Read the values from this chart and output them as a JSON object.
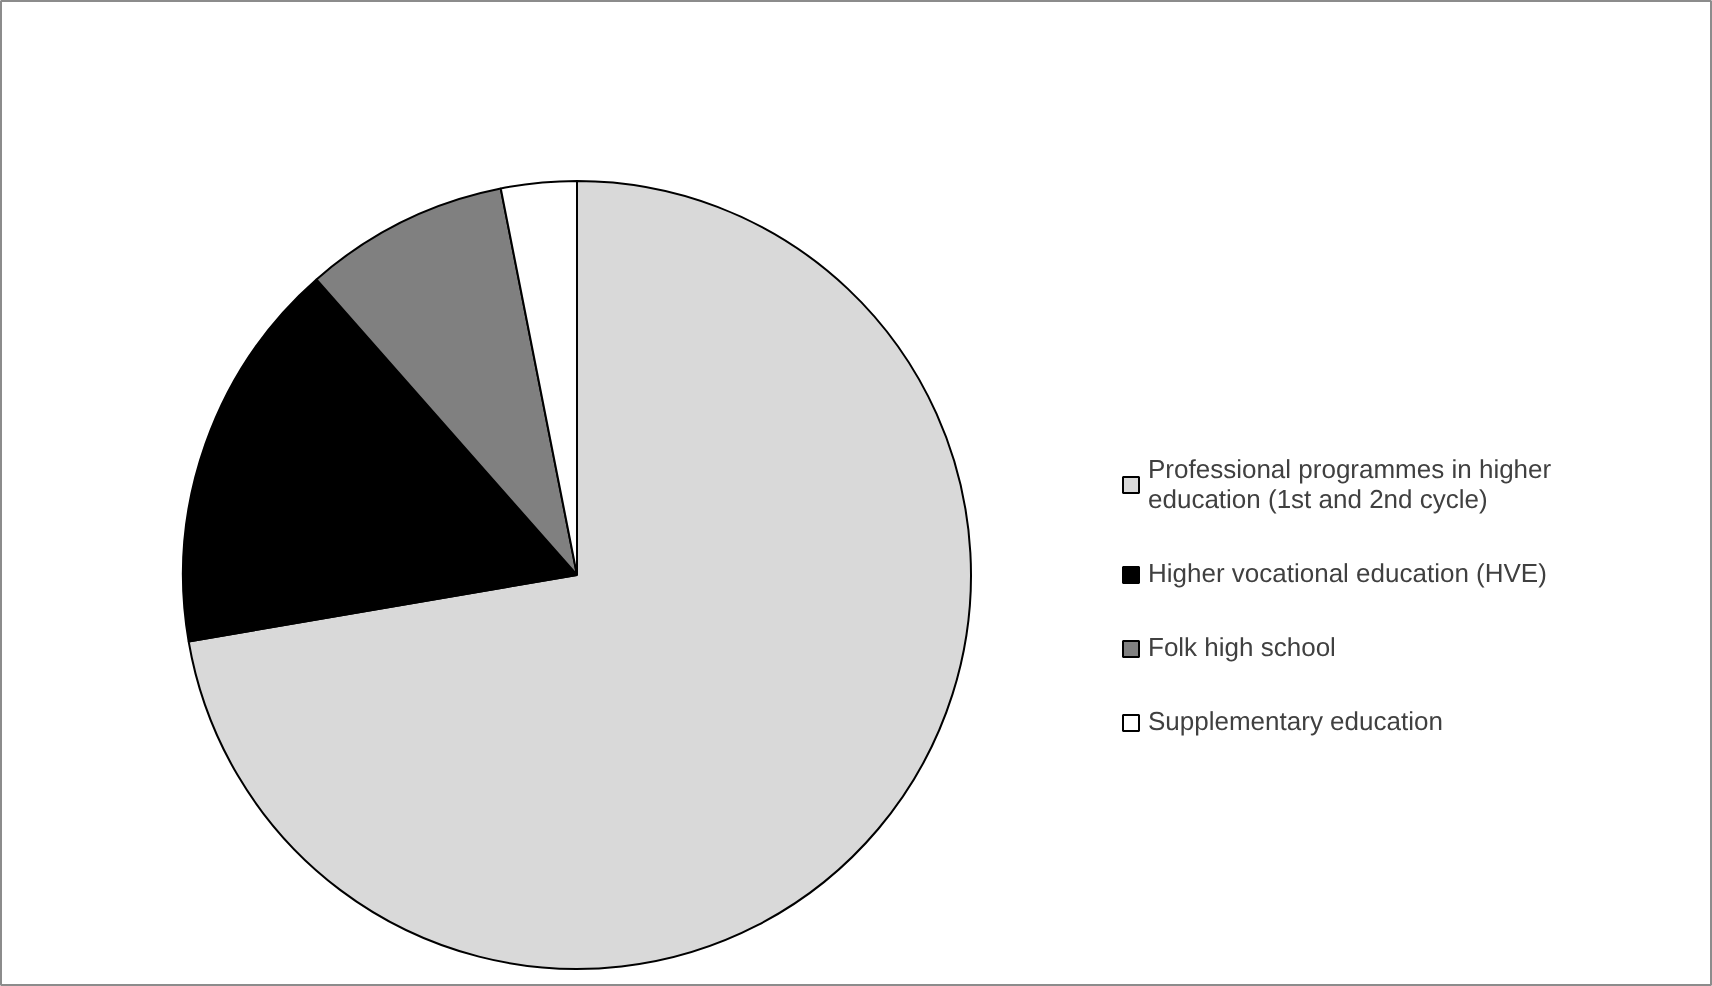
{
  "chart_data": {
    "type": "pie",
    "categories": [
      "Professional programmes in higher education (1st and 2nd cycle)",
      "Higher vocational education (HVE)",
      "Folk high school",
      "Supplementary education"
    ],
    "values": [
      72.3,
      16.2,
      8.4,
      3.1
    ],
    "colors": [
      "#d9d9d9",
      "#000000",
      "#808080",
      "#ffffff"
    ],
    "legend": "right"
  }
}
